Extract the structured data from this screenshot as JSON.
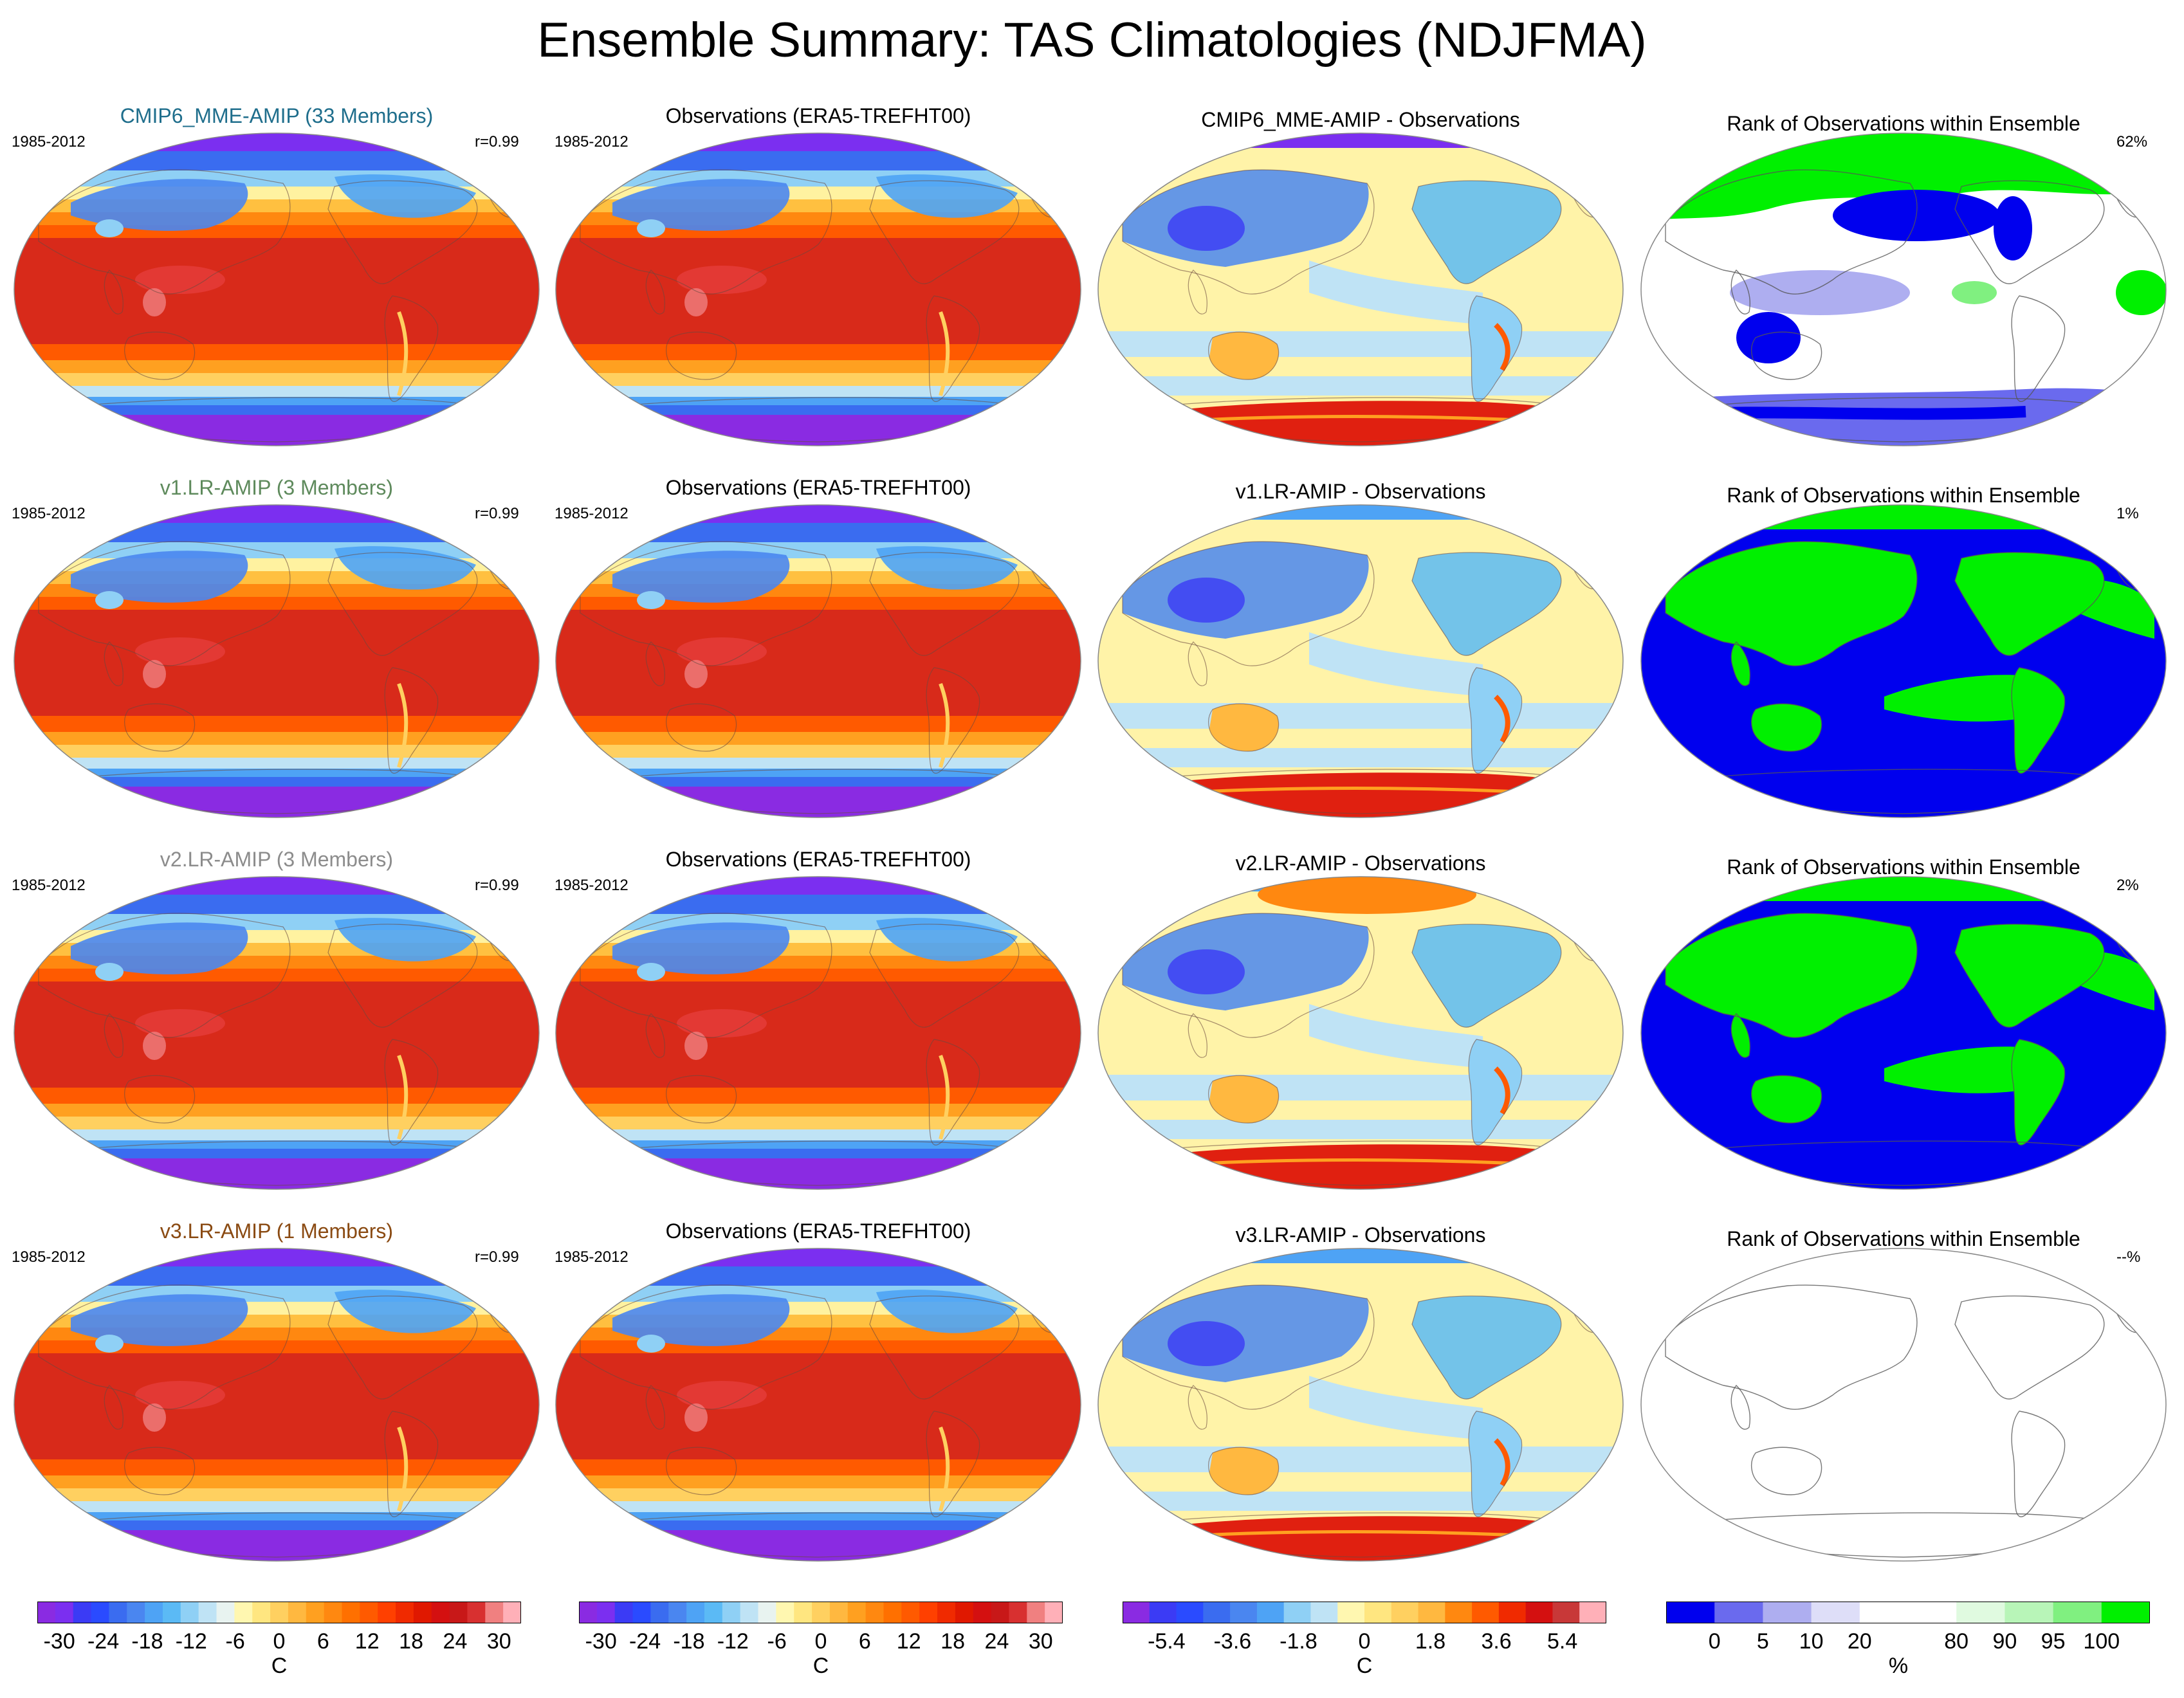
{
  "title": "Ensemble Summary: TAS Climatologies (NDJFMA)",
  "colors": {
    "mme": "#1f6e8c",
    "v1": "#5e8a5c",
    "v2": "#8c8c8c",
    "v3": "#8a4a12",
    "title": "#000000"
  },
  "rows": [
    {
      "model_title": "CMIP6_MME-AMIP (33 Members)",
      "model_color": "mme",
      "period": "1985-2012",
      "correlation": "r=0.99",
      "obs_title": "Observations (ERA5-TREFHT00)",
      "obs_period": "1985-2012",
      "diff_title": "CMIP6_MME-AMIP - Observations",
      "rank_title": "Rank of Observations within Ensemble",
      "rank_pct": "62%",
      "rank_style": "mixed"
    },
    {
      "model_title": "v1.LR-AMIP (3 Members)",
      "model_color": "v1",
      "period": "1985-2012",
      "correlation": "r=0.99",
      "obs_title": "Observations (ERA5-TREFHT00)",
      "obs_period": "1985-2012",
      "diff_title": "v1.LR-AMIP - Observations",
      "rank_title": "Rank of Observations within Ensemble",
      "rank_pct": "1%",
      "rank_style": "binary"
    },
    {
      "model_title": "v2.LR-AMIP (3 Members)",
      "model_color": "v2",
      "period": "1985-2012",
      "correlation": "r=0.99",
      "obs_title": "Observations (ERA5-TREFHT00)",
      "obs_period": "1985-2012",
      "diff_title": "v2.LR-AMIP - Observations",
      "rank_title": "Rank of Observations within Ensemble",
      "rank_pct": "2%",
      "rank_style": "binary"
    },
    {
      "model_title": "v3.LR-AMIP (1 Members)",
      "model_color": "v3",
      "period": "1985-2012",
      "correlation": "r=0.99",
      "obs_title": "Observations (ERA5-TREFHT00)",
      "obs_period": "1985-2012",
      "diff_title": "v3.LR-AMIP - Observations",
      "rank_title": "Rank of Observations within Ensemble",
      "rank_pct": "--%",
      "rank_style": "empty"
    }
  ],
  "colorbars": {
    "temperature": {
      "unit": "C",
      "labels": [
        "-30",
        "-24",
        "-18",
        "-12",
        "-6",
        "0",
        "6",
        "12",
        "18",
        "24",
        "30"
      ],
      "label_values": [
        -30,
        -24,
        -18,
        -12,
        -6,
        0,
        6,
        12,
        18,
        24,
        30
      ],
      "range": [
        -33,
        33
      ],
      "colors": [
        "#8a2be2",
        "#7b2ff0",
        "#3b3bf5",
        "#2a4bff",
        "#3a6cf0",
        "#4a86f0",
        "#4ea3f5",
        "#5bbaf5",
        "#8fd0f5",
        "#bfe3f5",
        "#e8f3f0",
        "#fff7b0",
        "#ffe680",
        "#ffd060",
        "#ffb840",
        "#ffa020",
        "#ff8810",
        "#ff7000",
        "#ff5a00",
        "#ff4000",
        "#f02a00",
        "#e01800",
        "#d41010",
        "#c81818",
        "#d83030",
        "#f08080",
        "#ffb0b8"
      ]
    },
    "difference": {
      "unit": "C",
      "labels": [
        "-5.4",
        "-3.6",
        "-1.8",
        "0",
        "1.8",
        "3.6",
        "5.4"
      ],
      "label_values": [
        -5.4,
        -3.6,
        -1.8,
        0,
        1.8,
        3.6,
        5.4
      ],
      "range": [
        -6.6,
        6.6
      ],
      "colors": [
        "#8a2be2",
        "#3b3bf5",
        "#2a4bff",
        "#3a6cf0",
        "#4a86f0",
        "#4ea3f5",
        "#8fd0f5",
        "#bfe3f5",
        "#fff7b0",
        "#ffe680",
        "#ffd060",
        "#ffb840",
        "#ff8810",
        "#ff5a00",
        "#f02a00",
        "#d41010",
        "#c83838",
        "#ffb0b8"
      ]
    },
    "rank": {
      "unit": "%",
      "labels": [
        "0",
        "5",
        "10",
        "20",
        "80",
        "90",
        "95",
        "100"
      ],
      "segments": [
        "#0000ee",
        "#6a6aee",
        "#aeaef0",
        "#dedef8",
        "#ffffff",
        "#ffffff",
        "#e0fae0",
        "#b8f5b8",
        "#80f080",
        "#00f000"
      ]
    }
  }
}
